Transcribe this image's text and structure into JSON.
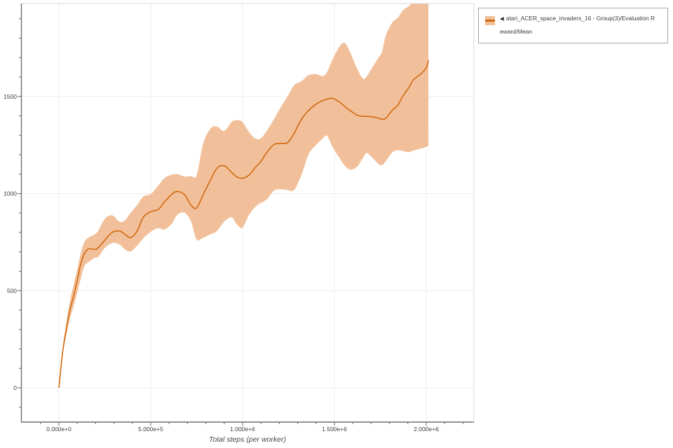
{
  "legend": {
    "marker": "◀",
    "label": "atari_ACER_space_invaders_16 - Group(3)/Evaluation Reward/Mean"
  },
  "chart_data": {
    "type": "line",
    "title": "",
    "xlabel": "Total steps (per worker)",
    "ylabel": "",
    "grid": true,
    "legend_position": "top-right",
    "series_name": "atari_ACER_space_invaders_16 - Group(3)/Evaluation Reward/Mean",
    "line_color": "#d2690f",
    "band_color": "#f1c09a",
    "grid_color": "#ececec",
    "axis_color": "#6f6f6f",
    "border_color": "#d9d9d9",
    "x_range": [
      -202000,
      2260000
    ],
    "y_range": [
      -176,
      1978
    ],
    "x_ticks": [
      {
        "label": "0.000e+0",
        "value": 0
      },
      {
        "label": "5.000e+5",
        "value": 500000
      },
      {
        "label": "1.000e+6",
        "value": 1000000
      },
      {
        "label": "1.500e+6",
        "value": 1500000
      },
      {
        "label": "2.000e+6",
        "value": 2000000
      }
    ],
    "y_ticks": [
      {
        "label": "0",
        "value": 0
      },
      {
        "label": "500",
        "value": 500
      },
      {
        "label": "1000",
        "value": 1000
      },
      {
        "label": "1500",
        "value": 1500
      }
    ],
    "steps": [
      0,
      20000,
      40000,
      60000,
      80000,
      100000,
      120000,
      140000,
      165000,
      195000,
      215000,
      250000,
      290000,
      330000,
      360000,
      390000,
      425000,
      460000,
      500000,
      540000,
      575000,
      615000,
      645000,
      685000,
      720000,
      750000,
      785000,
      825000,
      860000,
      900000,
      940000,
      970000,
      1000000,
      1035000,
      1070000,
      1100000,
      1130000,
      1170000,
      1205000,
      1245000,
      1280000,
      1320000,
      1360000,
      1400000,
      1435000,
      1460000,
      1490000,
      1530000,
      1560000,
      1590000,
      1625000,
      1655000,
      1675000,
      1700000,
      1740000,
      1760000,
      1780000,
      1815000,
      1845000,
      1875000,
      1905000,
      1930000,
      1970000,
      2000000,
      2012000
    ],
    "mean": [
      0,
      180,
      300,
      400,
      471,
      554,
      640,
      693,
      716,
      712,
      722,
      760,
      800,
      807,
      790,
      773,
      806,
      878,
      907,
      917,
      957,
      996,
      1011,
      993,
      939,
      926,
      993,
      1069,
      1130,
      1143,
      1110,
      1085,
      1079,
      1095,
      1135,
      1165,
      1209,
      1252,
      1258,
      1262,
      1309,
      1381,
      1428,
      1460,
      1478,
      1486,
      1490,
      1470,
      1445,
      1424,
      1403,
      1398,
      1397,
      1396,
      1388,
      1382,
      1388,
      1428,
      1455,
      1505,
      1545,
      1586,
      1615,
      1648,
      1687
    ],
    "band_lower": [
      0,
      170,
      270,
      355,
      420,
      490,
      565,
      628,
      650,
      670,
      675,
      720,
      745,
      738,
      712,
      702,
      730,
      770,
      803,
      822,
      815,
      845,
      890,
      901,
      855,
      763,
      772,
      790,
      806,
      855,
      878,
      840,
      824,
      890,
      932,
      952,
      968,
      1014,
      1022,
      1018,
      1018,
      1094,
      1202,
      1250,
      1282,
      1297,
      1240,
      1180,
      1140,
      1123,
      1140,
      1183,
      1209,
      1191,
      1152,
      1147,
      1166,
      1212,
      1223,
      1218,
      1213,
      1222,
      1231,
      1240,
      1247
    ],
    "band_upper": [
      0,
      195,
      330,
      445,
      530,
      610,
      695,
      752,
      775,
      790,
      810,
      870,
      888,
      855,
      862,
      900,
      940,
      985,
      997,
      1040,
      1080,
      1097,
      1100,
      1088,
      1090,
      1095,
      1255,
      1334,
      1345,
      1322,
      1368,
      1378,
      1368,
      1317,
      1283,
      1285,
      1320,
      1381,
      1440,
      1500,
      1558,
      1578,
      1610,
      1615,
      1605,
      1625,
      1690,
      1760,
      1774,
      1718,
      1640,
      1592,
      1602,
      1640,
      1700,
      1732,
      1815,
      1880,
      1905,
      1945,
      1965,
      1985,
      2005,
      2012,
      2015
    ]
  }
}
